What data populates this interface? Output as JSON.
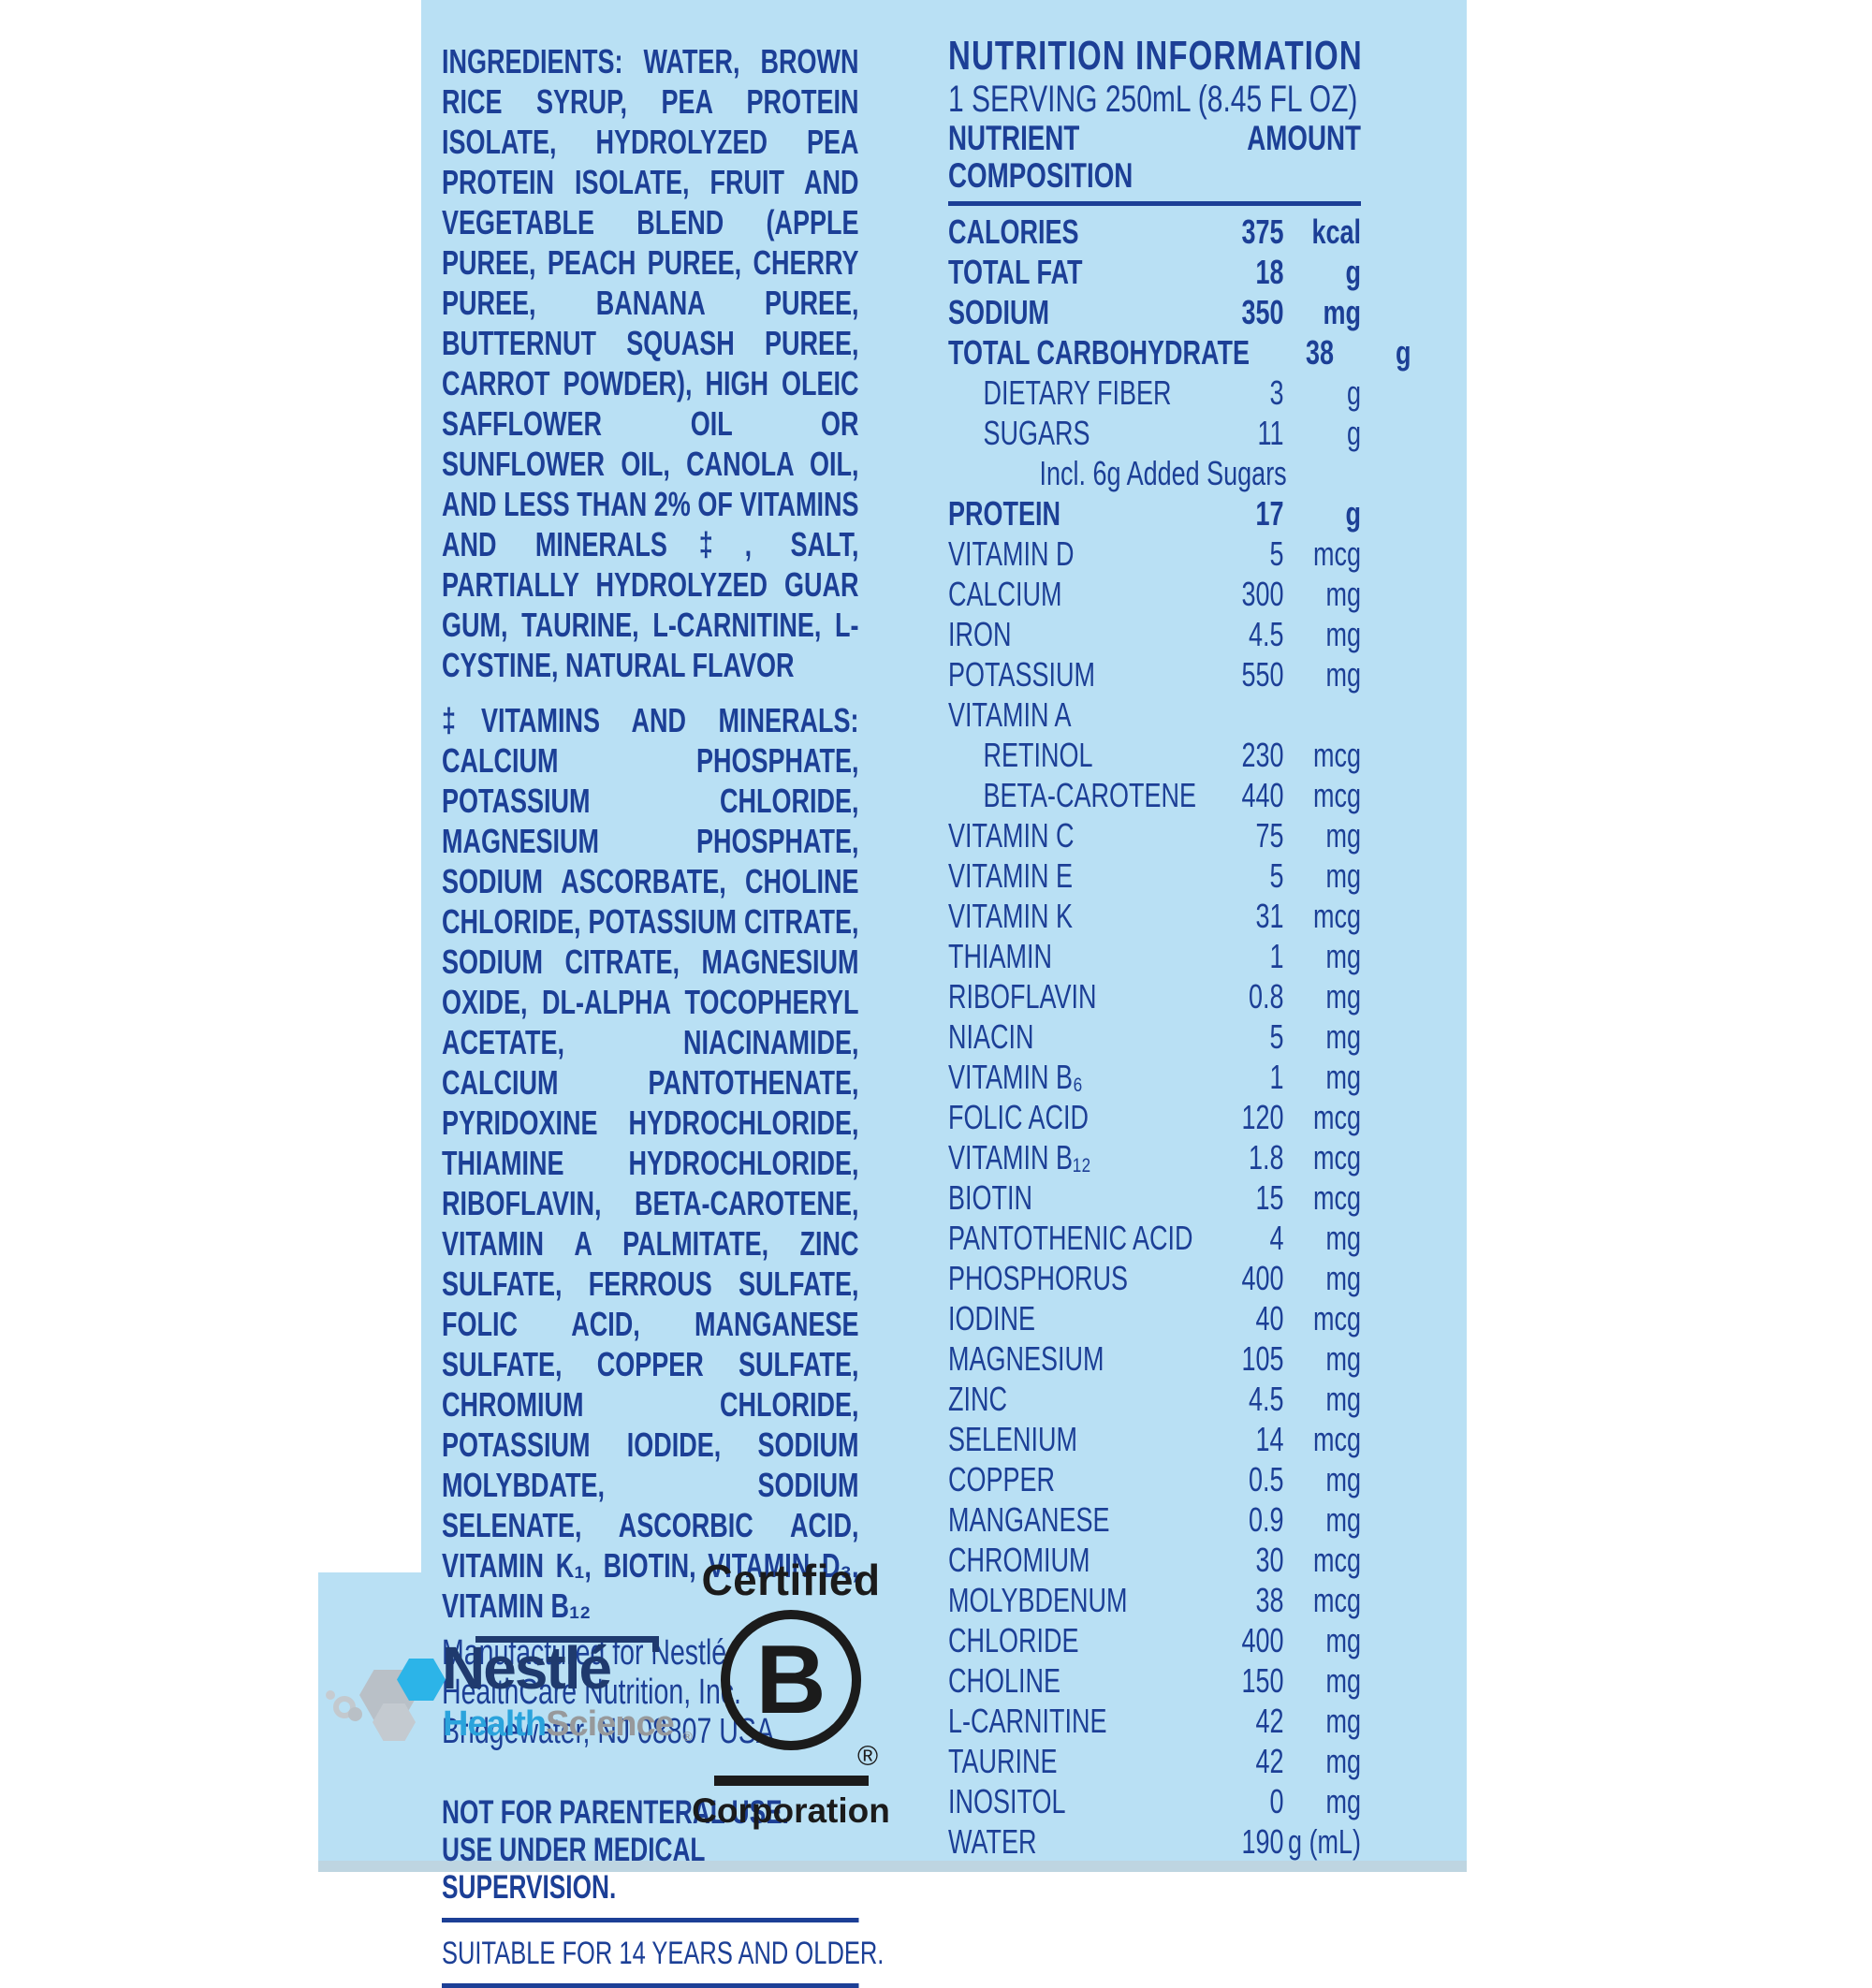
{
  "label": {
    "colors": {
      "label_background": "#b9e0f4",
      "label_text_navy": "#1c3f96",
      "nestle_navy": "#1f3a6e",
      "health_cyan": "#2aa3dc",
      "science_gray": "#97999b",
      "hexagon_cyan": "#2cb4e8",
      "hexagon_gray": "#b9c0c7",
      "bcorp_black": "#1b1b1b"
    },
    "left_column": {
      "ingredients": "INGREDIENTS: WATER, BROWN RICE SYRUP, PEA PROTEIN ISOLATE, HYDROLYZED PEA PROTEIN ISOLATE, FRUIT AND VEGETABLE BLEND (APPLE PUREE, PEACH PUREE, CHERRY PUREE, BANANA PUREE, BUTTERNUT SQUASH PUREE, CARROT POWDER), HIGH OLEIC SAFFLOWER OIL OR SUNFLOWER OIL, CANOLA OIL, AND LESS THAN 2% OF VITAMINS AND MINERALS‡, SALT, PARTIALLY HYDROLYZED GUAR GUM, TAURINE, L-CARNITINE, L-CYSTINE, NATURAL FLAVOR",
      "vitamins_minerals": "‡VITAMINS AND MINERALS: CALCIUM PHOSPHATE, POTASSIUM CHLORIDE, MAGNESIUM PHOSPHATE, SODIUM ASCORBATE, CHOLINE CHLORIDE, POTASSIUM CITRATE, SODIUM CITRATE, MAGNESIUM OXIDE, DL-ALPHA TOCOPHERYL ACETATE, NIACINAMIDE, CALCIUM PANTOTHENATE, PYRIDOXINE HYDROCHLORIDE, THIAMINE HYDROCHLORIDE, RIBOFLAVIN, BETA-CAROTENE, VITAMIN A PALMITATE, ZINC SULFATE, FERROUS SULFATE, FOLIC ACID, MANGANESE SULFATE, COPPER SULFATE, CHROMIUM CHLORIDE, POTASSIUM IODIDE, SODIUM MOLYBDATE, SODIUM SELENATE, ASCORBIC ACID, VITAMIN K₁, BIOTIN, VITAMIN D₃, VITAMIN B₁₂",
      "manufactured_lines": [
        "Manufactured for Nestlé",
        "HealthCare Nutrition, Inc.",
        "Bridgewater, NJ 08807 USA"
      ],
      "warning_lines": [
        "NOT FOR PARENTERAL USE.",
        "USE UNDER MEDICAL SUPERVISION."
      ],
      "suitability": "SUITABLE FOR 14 YEARS AND OLDER."
    },
    "nutrition": {
      "title": "NUTRITION INFORMATION",
      "serving": "1 SERVING 250mL (8.45 FL OZ)",
      "col_nutrient": "NUTRIENT COMPOSITION",
      "col_amount": "AMOUNT",
      "rows": [
        {
          "name": "CALORIES",
          "value": "375",
          "unit": "kcal",
          "style": "bold",
          "indent": 0
        },
        {
          "name": "TOTAL FAT",
          "value": "18",
          "unit": "g",
          "style": "bold",
          "indent": 0
        },
        {
          "name": "SODIUM",
          "value": "350",
          "unit": "mg",
          "style": "bold",
          "indent": 0
        },
        {
          "name": "TOTAL CARBOHYDRATE",
          "value": "38",
          "unit": "g",
          "style": "bold",
          "indent": 0
        },
        {
          "name": "DIETARY FIBER",
          "value": "3",
          "unit": "g",
          "style": "normal",
          "indent": 1
        },
        {
          "name": "SUGARS",
          "value": "11",
          "unit": "g",
          "style": "normal",
          "indent": 1
        },
        {
          "name": "Incl. 6g Added Sugars",
          "value": "",
          "unit": "",
          "style": "note",
          "indent": 2
        },
        {
          "name": "PROTEIN",
          "value": "17",
          "unit": "g",
          "style": "bold",
          "indent": 0
        },
        {
          "name": "VITAMIN D",
          "value": "5",
          "unit": "mcg",
          "style": "normal",
          "indent": 0
        },
        {
          "name": "CALCIUM",
          "value": "300",
          "unit": "mg",
          "style": "normal",
          "indent": 0
        },
        {
          "name": "IRON",
          "value": "4.5",
          "unit": "mg",
          "style": "normal",
          "indent": 0
        },
        {
          "name": "POTASSIUM",
          "value": "550",
          "unit": "mg",
          "style": "normal",
          "indent": 0
        },
        {
          "name": "VITAMIN A",
          "value": "",
          "unit": "",
          "style": "normal",
          "indent": 0
        },
        {
          "name": "RETINOL",
          "value": "230",
          "unit": "mcg",
          "style": "normal",
          "indent": 1
        },
        {
          "name": "BETA-CAROTENE",
          "value": "440",
          "unit": "mcg",
          "style": "normal",
          "indent": 1
        },
        {
          "name": "VITAMIN C",
          "value": "75",
          "unit": "mg",
          "style": "normal",
          "indent": 0
        },
        {
          "name": "VITAMIN E",
          "value": "5",
          "unit": "mg",
          "style": "normal",
          "indent": 0
        },
        {
          "name": "VITAMIN K",
          "value": "31",
          "unit": "mcg",
          "style": "normal",
          "indent": 0
        },
        {
          "name": "THIAMIN",
          "value": "1",
          "unit": "mg",
          "style": "normal",
          "indent": 0
        },
        {
          "name": "RIBOFLAVIN",
          "value": "0.8",
          "unit": "mg",
          "style": "normal",
          "indent": 0
        },
        {
          "name": "NIACIN",
          "value": "5",
          "unit": "mg",
          "style": "normal",
          "indent": 0
        },
        {
          "name": "VITAMIN B₆",
          "value": "1",
          "unit": "mg",
          "style": "normal",
          "indent": 0
        },
        {
          "name": "FOLIC ACID",
          "value": "120",
          "unit": "mcg",
          "style": "normal",
          "indent": 0
        },
        {
          "name": "VITAMIN B₁₂",
          "value": "1.8",
          "unit": "mcg",
          "style": "normal",
          "indent": 0
        },
        {
          "name": "BIOTIN",
          "value": "15",
          "unit": "mcg",
          "style": "normal",
          "indent": 0
        },
        {
          "name": "PANTOTHENIC ACID",
          "value": "4",
          "unit": "mg",
          "style": "normal",
          "indent": 0
        },
        {
          "name": "PHOSPHORUS",
          "value": "400",
          "unit": "mg",
          "style": "normal",
          "indent": 0
        },
        {
          "name": "IODINE",
          "value": "40",
          "unit": "mcg",
          "style": "normal",
          "indent": 0
        },
        {
          "name": "MAGNESIUM",
          "value": "105",
          "unit": "mg",
          "style": "normal",
          "indent": 0
        },
        {
          "name": "ZINC",
          "value": "4.5",
          "unit": "mg",
          "style": "normal",
          "indent": 0
        },
        {
          "name": "SELENIUM",
          "value": "14",
          "unit": "mcg",
          "style": "normal",
          "indent": 0
        },
        {
          "name": "COPPER",
          "value": "0.5",
          "unit": "mg",
          "style": "normal",
          "indent": 0
        },
        {
          "name": "MANGANESE",
          "value": "0.9",
          "unit": "mg",
          "style": "normal",
          "indent": 0
        },
        {
          "name": "CHROMIUM",
          "value": "30",
          "unit": "mcg",
          "style": "normal",
          "indent": 0
        },
        {
          "name": "MOLYBDENUM",
          "value": "38",
          "unit": "mcg",
          "style": "normal",
          "indent": 0
        },
        {
          "name": "CHLORIDE",
          "value": "400",
          "unit": "mg",
          "style": "normal",
          "indent": 0
        },
        {
          "name": "CHOLINE",
          "value": "150",
          "unit": "mg",
          "style": "normal",
          "indent": 0
        },
        {
          "name": "L-CARNITINE",
          "value": "42",
          "unit": "mg",
          "style": "normal",
          "indent": 0
        },
        {
          "name": "TAURINE",
          "value": "42",
          "unit": "mg",
          "style": "normal",
          "indent": 0
        },
        {
          "name": "INOSITOL",
          "value": "0",
          "unit": "mg",
          "style": "normal",
          "indent": 0
        },
        {
          "name": "WATER",
          "value": "190",
          "unit": "g (mL)",
          "style": "normal",
          "indent": 0
        }
      ]
    },
    "logos": {
      "nestle": {
        "wordmark": "Nestlé",
        "sub_health": "Health",
        "sub_science": "Science",
        "registered": "®"
      },
      "bcorp": {
        "certified": "Certified",
        "letter": "B",
        "registered": "®",
        "corporation": "Corporation"
      }
    }
  }
}
